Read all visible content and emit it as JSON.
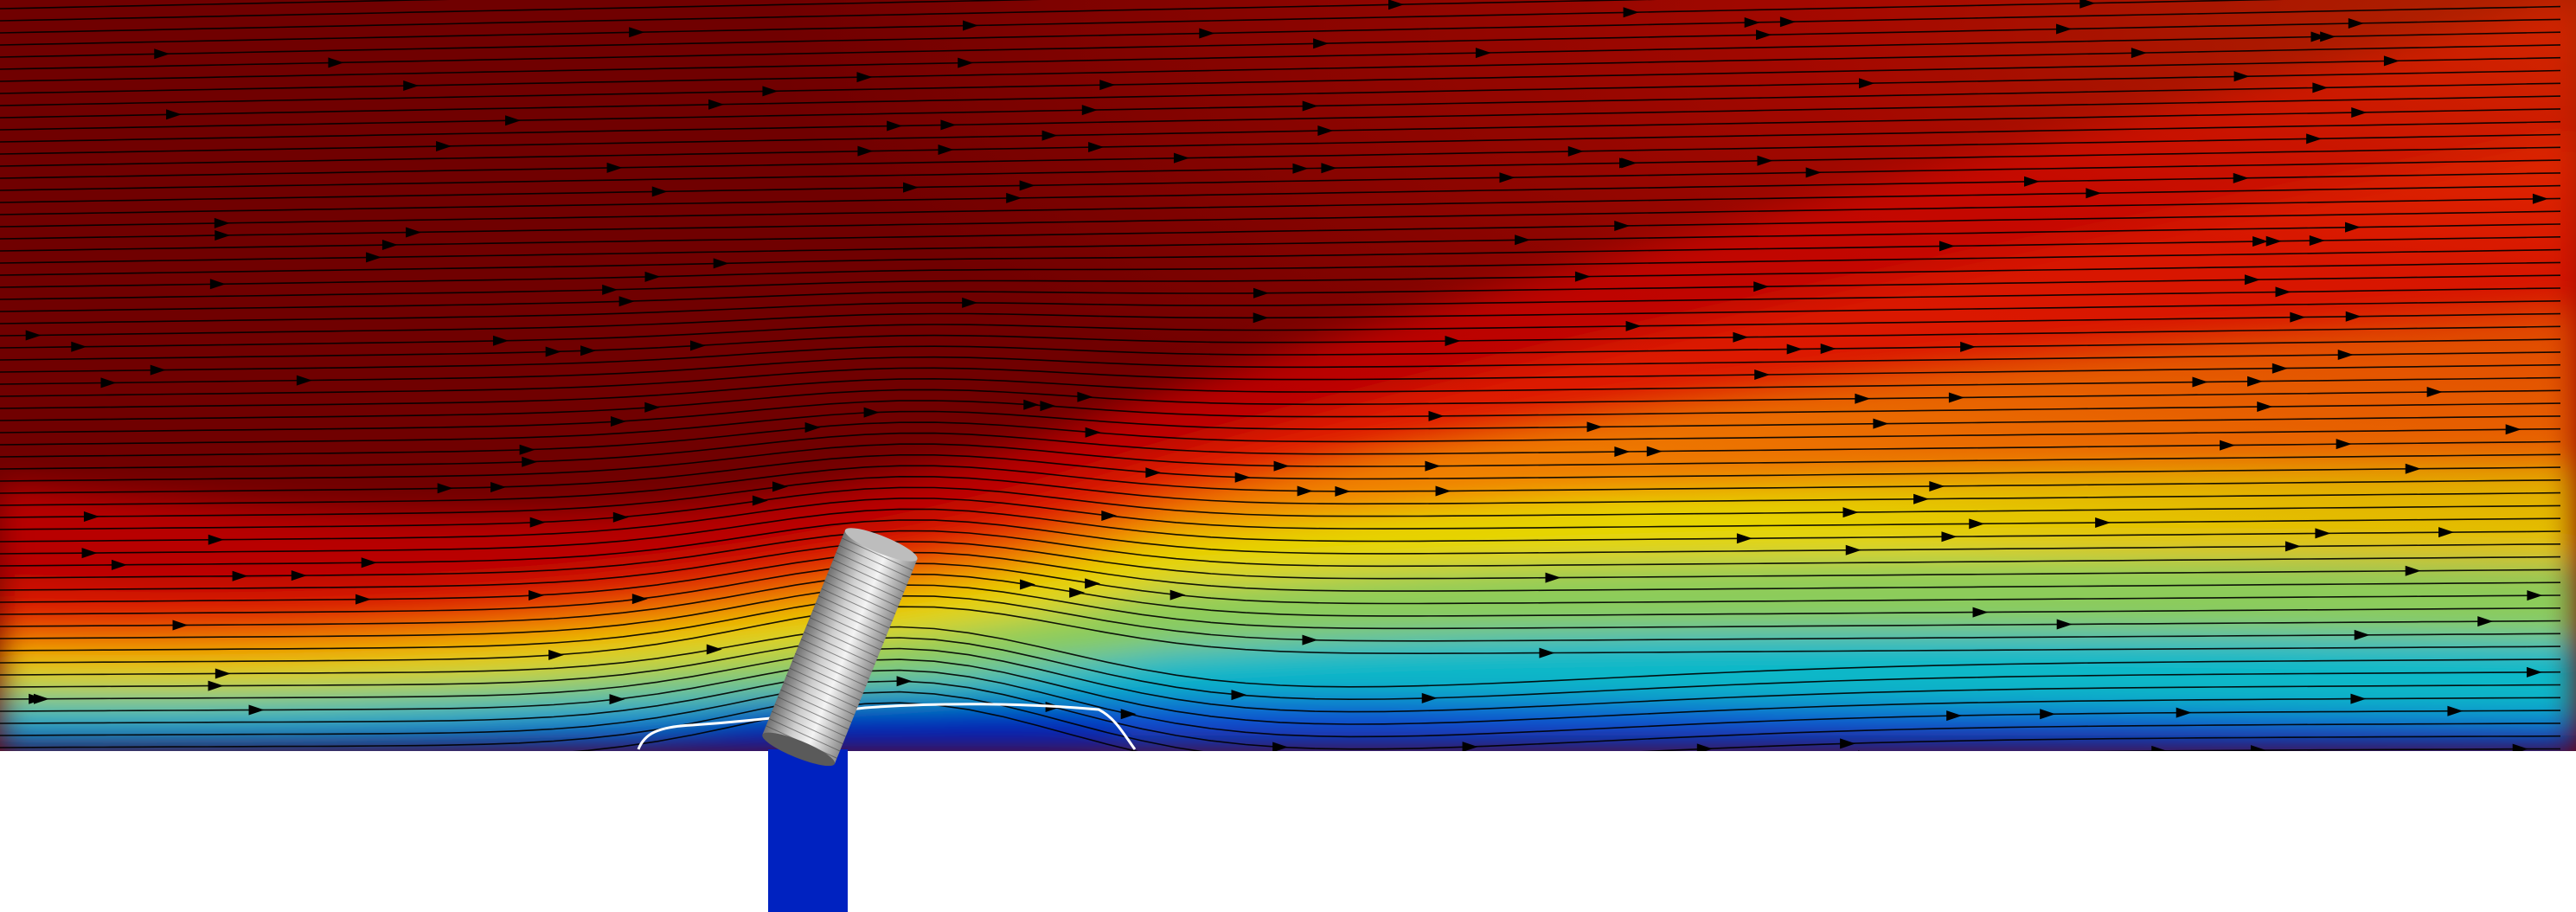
{
  "scene": {
    "description_kind": "CFD velocity field with streamlines around an inclined cylinder above a wall with a slot jet",
    "colormap": [
      "#0018b8",
      "#00b8d0",
      "#9ad05a",
      "#e8d800",
      "#f0a000",
      "#e02000",
      "#b00000",
      "#6a0000"
    ],
    "background": "#ffffff",
    "wall_color": "#ffffff",
    "jet_color": "#0022c0",
    "streamline_color": "#000000",
    "arrow_color": "#000000",
    "contour_color": "#ffffff",
    "cylinder_colors": [
      "#6e6e6e",
      "#d8d8d8",
      "#ffffff",
      "#9a9a9a"
    ]
  }
}
